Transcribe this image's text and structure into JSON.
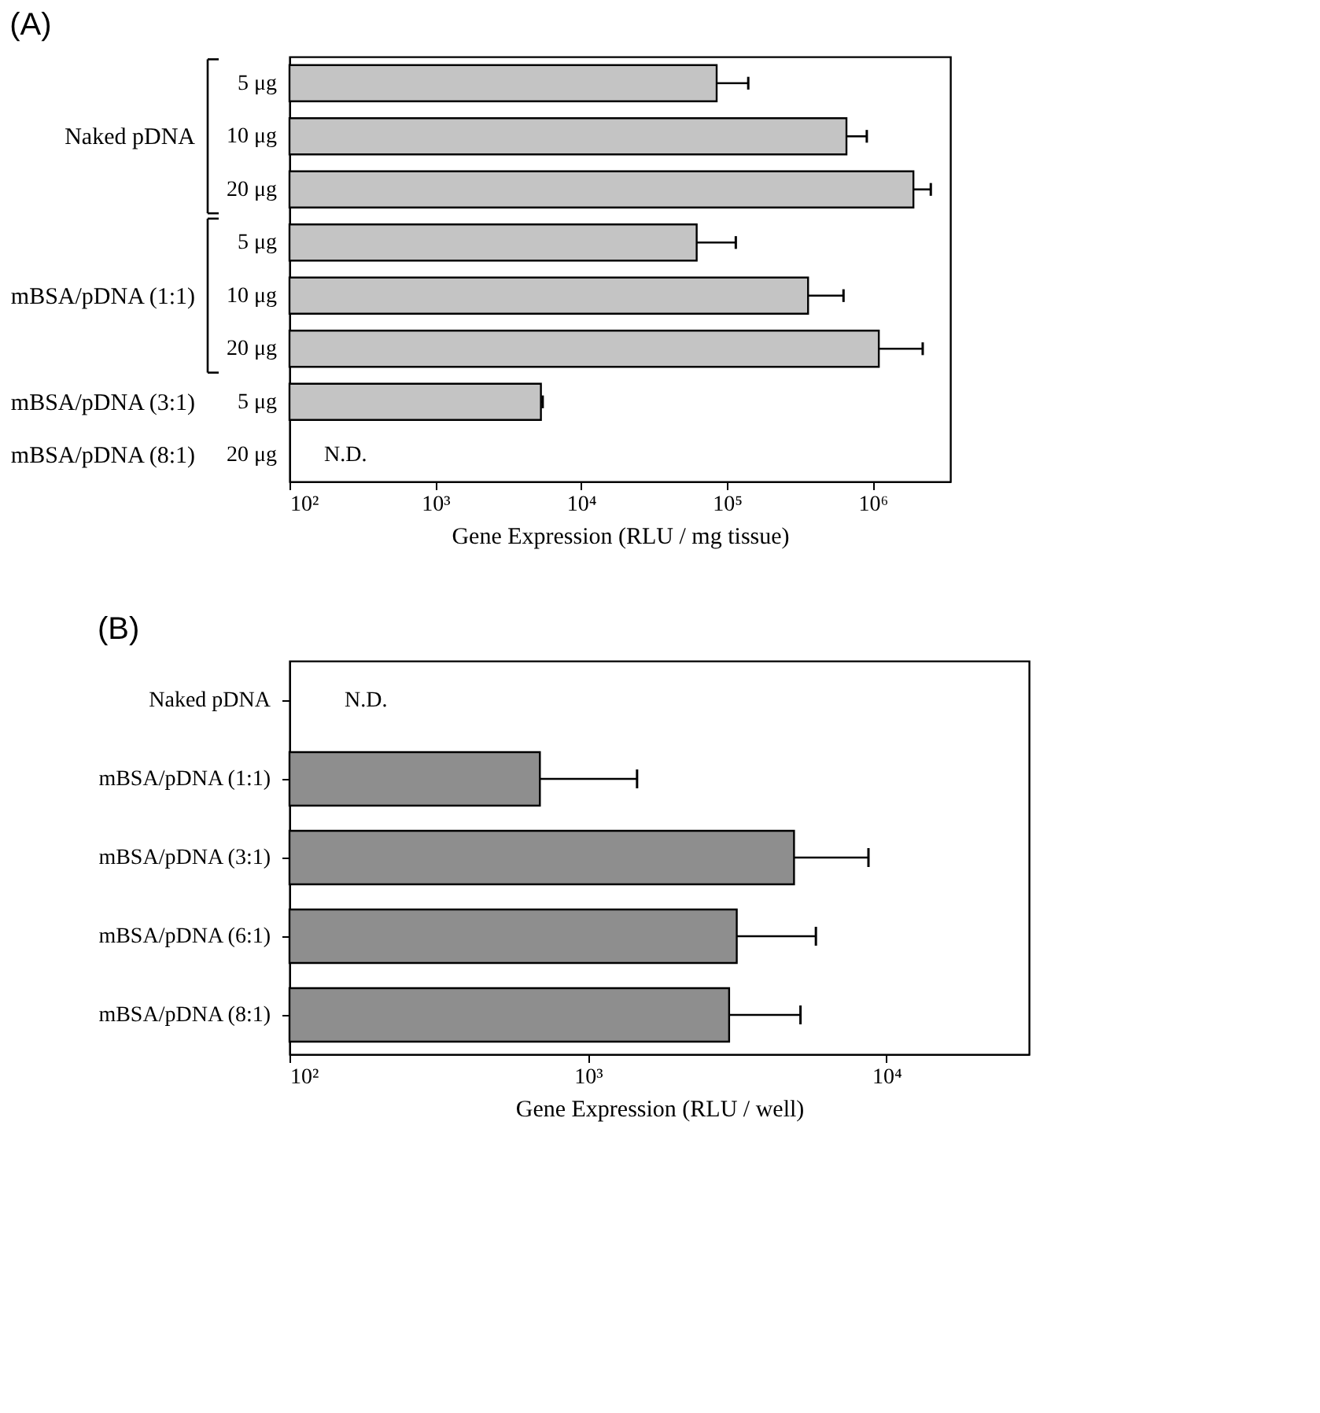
{
  "chart_data": [
    {
      "type": "bar",
      "orientation": "horizontal",
      "title": "(A)",
      "xlabel": "Gene Expression (RLU / mg tissue)",
      "log": "x",
      "grid": false,
      "categories": [
        "5 μg",
        "10 μg",
        "20 μg",
        "5 μg",
        "10 μg",
        "20 μg",
        "5 μg",
        "20 μg"
      ],
      "values": [
        85000,
        660000,
        1900000,
        62000,
        360000,
        1100000,
        5300,
        null
      ],
      "errors": [
        [
          85000,
          140000
        ],
        [
          660000,
          910000
        ],
        [
          1900000,
          2500000
        ],
        [
          62000,
          115000
        ],
        [
          360000,
          630000
        ],
        [
          1100000,
          2200000
        ],
        [
          5300,
          5450
        ],
        null
      ],
      "value_labels": [
        null,
        null,
        null,
        null,
        null,
        null,
        null,
        "N.D."
      ],
      "color": "#c4c4c4",
      "annotations": [
        "Naked pDNA",
        "mBSA/pDNA (1:1)",
        "mBSA/pDNA (3:1)",
        "mBSA/pDNA (8:1)"
      ],
      "xlim": [
        100,
        3400000
      ],
      "xticks": [
        {
          "value": 100,
          "label": "10²"
        },
        {
          "value": 1000,
          "label": "10³"
        },
        {
          "value": 10000,
          "label": "10⁴"
        },
        {
          "value": 100000,
          "label": "10⁵"
        },
        {
          "value": 1000000,
          "label": "10⁶"
        }
      ]
    },
    {
      "type": "bar",
      "orientation": "horizontal",
      "title": "(B)",
      "xlabel": "Gene Expression (RLU / well)",
      "log": "x",
      "grid": false,
      "categories": [
        "Naked pDNA",
        "mBSA/pDNA (1:1)",
        "mBSA/pDNA (3:1)",
        "mBSA/pDNA (6:1)",
        "mBSA/pDNA (8:1)"
      ],
      "values": [
        null,
        690,
        4900,
        3150,
        2970
      ],
      "errors": [
        null,
        [
          690,
          1460
        ],
        [
          4900,
          8700
        ],
        [
          3150,
          5800
        ],
        [
          2970,
          5150
        ]
      ],
      "value_labels": [
        "N.D.",
        null,
        null,
        null,
        null
      ],
      "color": "#8e8e8e",
      "xlim": [
        100,
        30000
      ],
      "xticks": [
        {
          "value": 100,
          "label": "10²"
        },
        {
          "value": 1000,
          "label": "10³"
        },
        {
          "value": 10000,
          "label": "10⁴"
        }
      ]
    }
  ]
}
